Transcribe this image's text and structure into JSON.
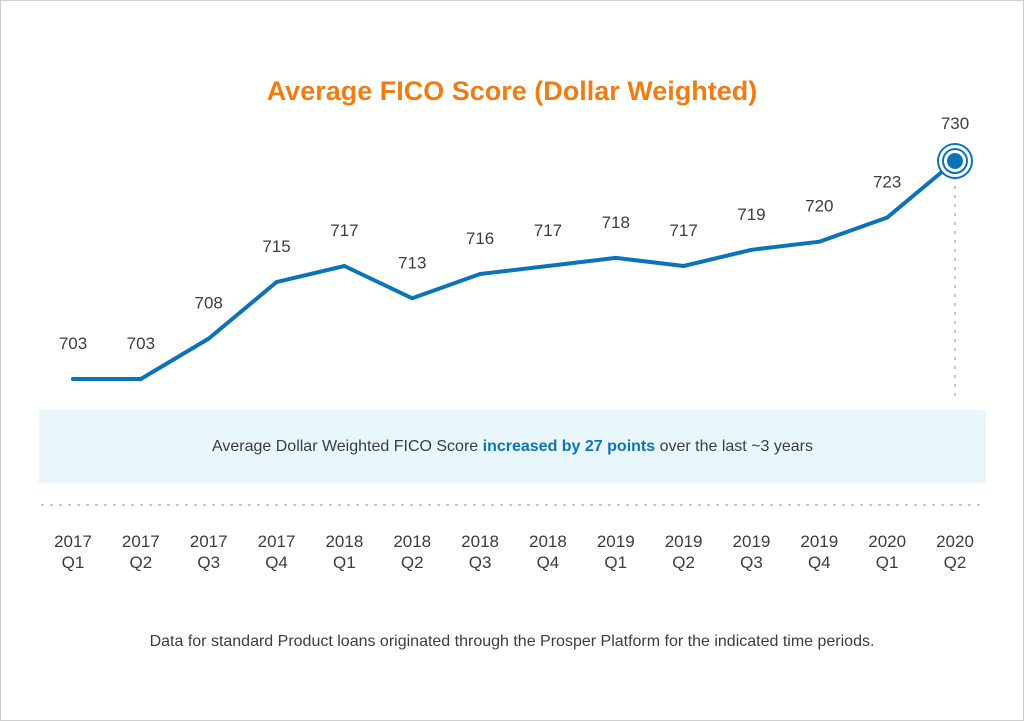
{
  "chart_data": {
    "type": "line",
    "title": "Average FICO Score (Dollar Weighted)",
    "categories": [
      {
        "year": "2017",
        "quarter": "Q1"
      },
      {
        "year": "2017",
        "quarter": "Q2"
      },
      {
        "year": "2017",
        "quarter": "Q3"
      },
      {
        "year": "2017",
        "quarter": "Q4"
      },
      {
        "year": "2018",
        "quarter": "Q1"
      },
      {
        "year": "2018",
        "quarter": "Q2"
      },
      {
        "year": "2018",
        "quarter": "Q3"
      },
      {
        "year": "2018",
        "quarter": "Q4"
      },
      {
        "year": "2019",
        "quarter": "Q1"
      },
      {
        "year": "2019",
        "quarter": "Q2"
      },
      {
        "year": "2019",
        "quarter": "Q3"
      },
      {
        "year": "2019",
        "quarter": "Q4"
      },
      {
        "year": "2020",
        "quarter": "Q1"
      },
      {
        "year": "2020",
        "quarter": "Q2"
      }
    ],
    "values": [
      703,
      703,
      708,
      715,
      717,
      713,
      716,
      717,
      718,
      717,
      719,
      720,
      723,
      730
    ],
    "ylim": [
      703,
      730
    ],
    "grid": false,
    "xlabel": "",
    "ylabel": ""
  },
  "callout": {
    "prefix": "Average Dollar Weighted FICO Score ",
    "highlight": "increased by 27 points",
    "suffix": " over the last ~3 years"
  },
  "footnote": "Data for standard Product loans originated through the Prosper Platform for the indicated time periods.",
  "colors": {
    "title": "#f07d14",
    "line": "#0b74b8",
    "callout_bg": "#e9f6fb",
    "text": "#3d3d3d",
    "divider": "#c8c8c8"
  }
}
